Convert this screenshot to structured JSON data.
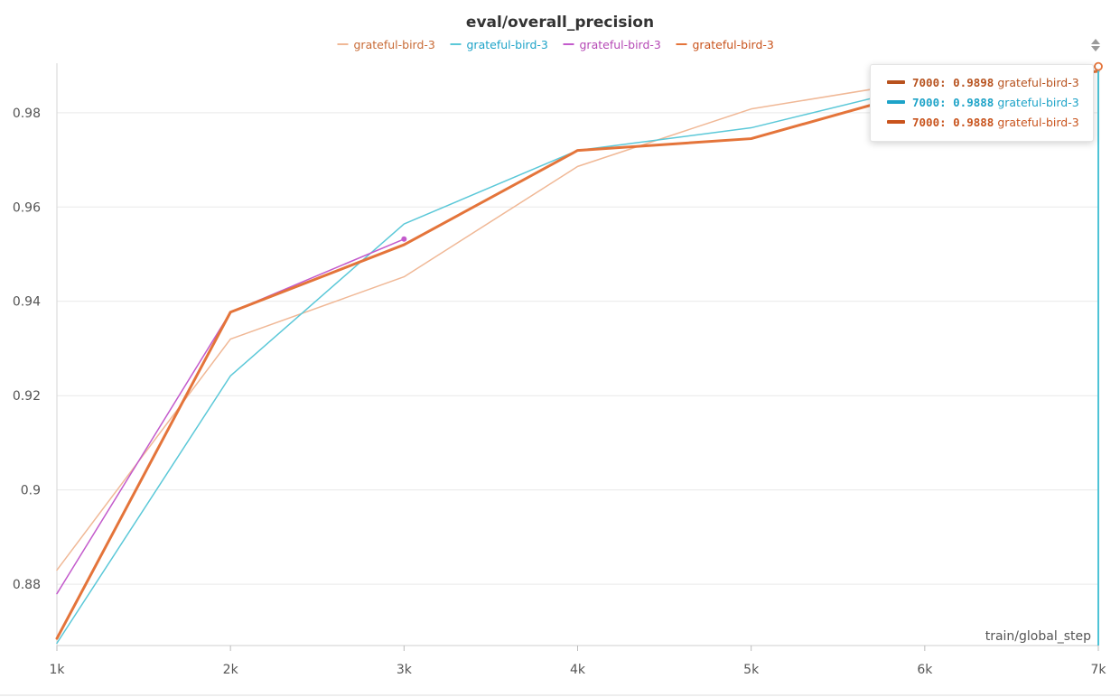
{
  "chart_data": {
    "type": "line",
    "title": "eval/overall_precision",
    "xlabel": "train/global_step",
    "ylabel": "",
    "xlim": [
      1000,
      7000
    ],
    "ylim": [
      0.867,
      0.9905
    ],
    "x_ticks": [
      1000,
      2000,
      3000,
      4000,
      5000,
      6000,
      7000
    ],
    "x_tick_labels": [
      "1k",
      "2k",
      "3k",
      "4k",
      "5k",
      "6k",
      "7k"
    ],
    "y_ticks": [
      0.88,
      0.9,
      0.92,
      0.94,
      0.96,
      0.98
    ],
    "y_tick_labels": [
      "0.88",
      "0.9",
      "0.92",
      "0.94",
      "0.96",
      "0.98"
    ],
    "grid": true,
    "legend_position": "top-center",
    "series": [
      {
        "name": "grateful-bird-3",
        "color": "#f0b896",
        "width": 1.5,
        "x": [
          1000,
          2000,
          3000,
          4000,
          5000,
          6000,
          7000
        ],
        "y": [
          0.883,
          0.932,
          0.9452,
          0.9686,
          0.9808,
          0.9868,
          0.9898
        ]
      },
      {
        "name": "grateful-bird-3",
        "color": "#5bc8d8",
        "width": 1.5,
        "x": [
          1000,
          2000,
          3000,
          4000,
          5000,
          6000,
          7000
        ],
        "y": [
          0.8675,
          0.9242,
          0.9564,
          0.972,
          0.9768,
          0.9858,
          0.9888
        ]
      },
      {
        "name": "grateful-bird-3",
        "color": "#c35bcc",
        "width": 1.5,
        "end_marker": true,
        "x": [
          1000,
          2000,
          3000
        ],
        "y": [
          0.878,
          0.9377,
          0.9532
        ]
      },
      {
        "name": "grateful-bird-3",
        "color": "#e4743a",
        "width": 3,
        "x": [
          1000,
          2000,
          3000,
          4000,
          5000,
          6000,
          7000
        ],
        "y": [
          0.8685,
          0.9377,
          0.952,
          0.972,
          0.9745,
          0.9848,
          0.9888
        ]
      }
    ]
  },
  "tooltip": {
    "rows": [
      {
        "step": "7000",
        "value": "0.9898",
        "name": "grateful-bird-3",
        "color": "#b8521e"
      },
      {
        "step": "7000",
        "value": "0.9888",
        "name": "grateful-bird-3",
        "color": "#1da3c8"
      },
      {
        "step": "7000",
        "value": "0.9888",
        "name": "grateful-bird-3",
        "color": "#c9531c"
      }
    ]
  },
  "legend": {
    "text_colors": [
      "#c86a35",
      "#1da3c8",
      "#b548b5",
      "#c9531c"
    ]
  },
  "hover": {
    "x": 7000,
    "line_color": "#4ec3d6",
    "marker_color": "#e4743a"
  },
  "icons": {
    "sort": "sort-updown-icon"
  }
}
